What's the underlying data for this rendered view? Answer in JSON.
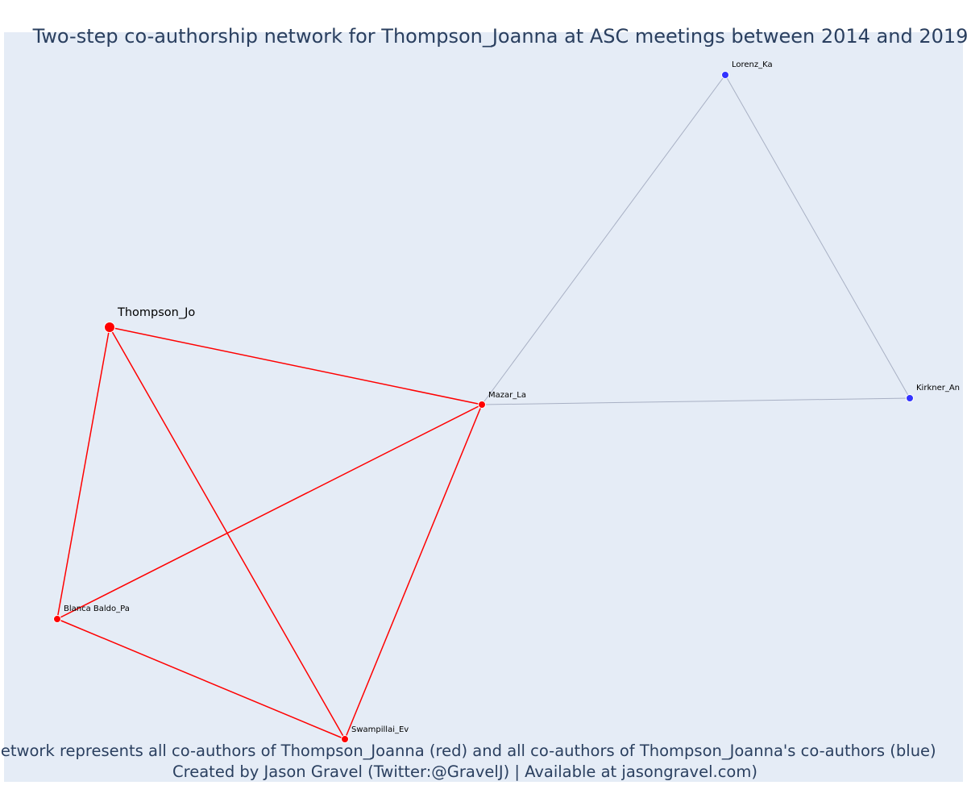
{
  "title": "Two-step co-authorship network for Thompson_Joanna at ASC meetings between 2014 and 2019",
  "footer": {
    "line1": "Network represents all co-authors of Thompson_Joanna (red) and all co-authors of Thompson_Joanna's co-authors (blue)",
    "line2": "Created by Jason Gravel (Twitter:@GravelJ) | Available at jasongravel.com)"
  },
  "colors": {
    "background": "#e5ecf6",
    "first_degree": "#ff0000",
    "second_degree": "#3333ff",
    "first_degree_edge": "#ff0000",
    "second_degree_edge": "#a8b0c4"
  },
  "network": {
    "nodes": [
      {
        "id": "thompson",
        "label": "Thompson_Jo",
        "group": "first-degree",
        "focal": true
      },
      {
        "id": "mazar",
        "label": "Mazar_La",
        "group": "first-degree"
      },
      {
        "id": "blanca",
        "label": "Blanca Baldo_Pa",
        "group": "first-degree"
      },
      {
        "id": "swampillai",
        "label": "Swampillai_Ev",
        "group": "first-degree"
      },
      {
        "id": "lorenz",
        "label": "Lorenz_Ka",
        "group": "second-degree"
      },
      {
        "id": "kirkner",
        "label": "Kirkner_An",
        "group": "second-degree"
      }
    ],
    "edges": [
      {
        "source": "thompson",
        "target": "mazar",
        "group": "first-degree"
      },
      {
        "source": "thompson",
        "target": "blanca",
        "group": "first-degree"
      },
      {
        "source": "thompson",
        "target": "swampillai",
        "group": "first-degree"
      },
      {
        "source": "mazar",
        "target": "blanca",
        "group": "first-degree"
      },
      {
        "source": "mazar",
        "target": "swampillai",
        "group": "first-degree"
      },
      {
        "source": "blanca",
        "target": "swampillai",
        "group": "first-degree"
      },
      {
        "source": "mazar",
        "target": "lorenz",
        "group": "second-degree"
      },
      {
        "source": "mazar",
        "target": "kirkner",
        "group": "second-degree"
      },
      {
        "source": "lorenz",
        "target": "kirkner",
        "group": "second-degree"
      }
    ]
  }
}
